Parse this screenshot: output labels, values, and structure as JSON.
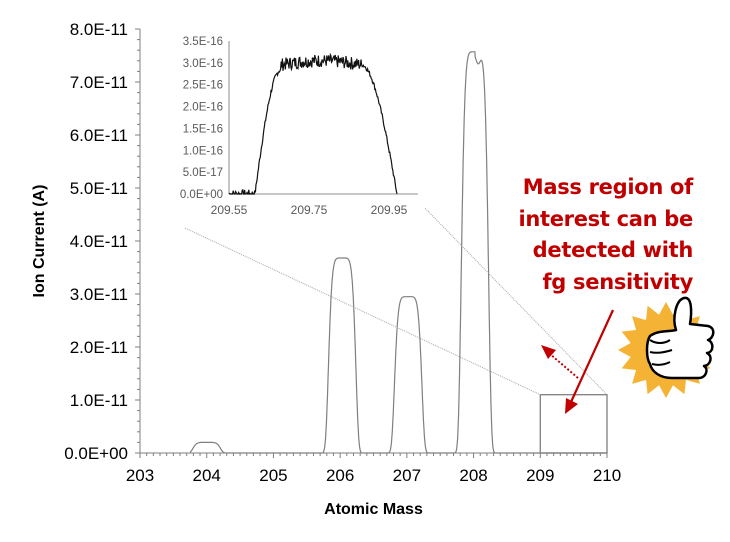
{
  "chart_data": {
    "type": "line",
    "title": "",
    "xlabel": "Atomic Mass",
    "ylabel": "Ion Current (A)",
    "xlim": [
      203,
      210
    ],
    "ylim": [
      0,
      8e-11
    ],
    "x_ticks": [
      "203",
      "204",
      "205",
      "206",
      "207",
      "208",
      "209",
      "210"
    ],
    "y_ticks": [
      "0.0E+00",
      "1.0E-11",
      "2.0E-11",
      "3.0E-11",
      "4.0E-11",
      "5.0E-11",
      "6.0E-11",
      "7.0E-11",
      "8.0E-11"
    ],
    "series": [
      {
        "name": "Ion current",
        "color": "#7f7f7f",
        "peaks": [
          {
            "center": 204.0,
            "height": 2e-12,
            "halfwidth": 0.2
          },
          {
            "center": 206.03,
            "height": 3.68e-11,
            "halfwidth": 0.2
          },
          {
            "center": 207.02,
            "height": 2.95e-11,
            "halfwidth": 0.2
          },
          {
            "center": 208.02,
            "height": 7.57e-11,
            "halfwidth": 0.2
          }
        ]
      }
    ],
    "zoom_box": {
      "x": [
        209,
        210
      ],
      "y": [
        0,
        1.1e-11
      ]
    },
    "inset": {
      "xlim": [
        209.55,
        209.99
      ],
      "ylim": [
        0,
        3.5e-16
      ],
      "x_ticks": [
        "209.55",
        "209.75",
        "209.95"
      ],
      "y_ticks": [
        "0.0E+00",
        "5.0E-17",
        "1.0E-16",
        "1.5E-16",
        "2.0E-16",
        "2.5E-16",
        "3.0E-16",
        "3.5E-16"
      ],
      "series": {
        "plateau": 3.05e-16,
        "rise_start": 209.615,
        "rise_end": 209.68,
        "fall_start": 209.88,
        "fall_end": 209.97
      }
    }
  },
  "annotation": {
    "lines": [
      "Mass region of",
      "interest can be",
      "detected with",
      "fg sensitivity"
    ],
    "color": "#C00000"
  },
  "icons": {
    "thumbs_up": "thumbs-up-sun-icon",
    "sun_color": "#F5B335"
  }
}
